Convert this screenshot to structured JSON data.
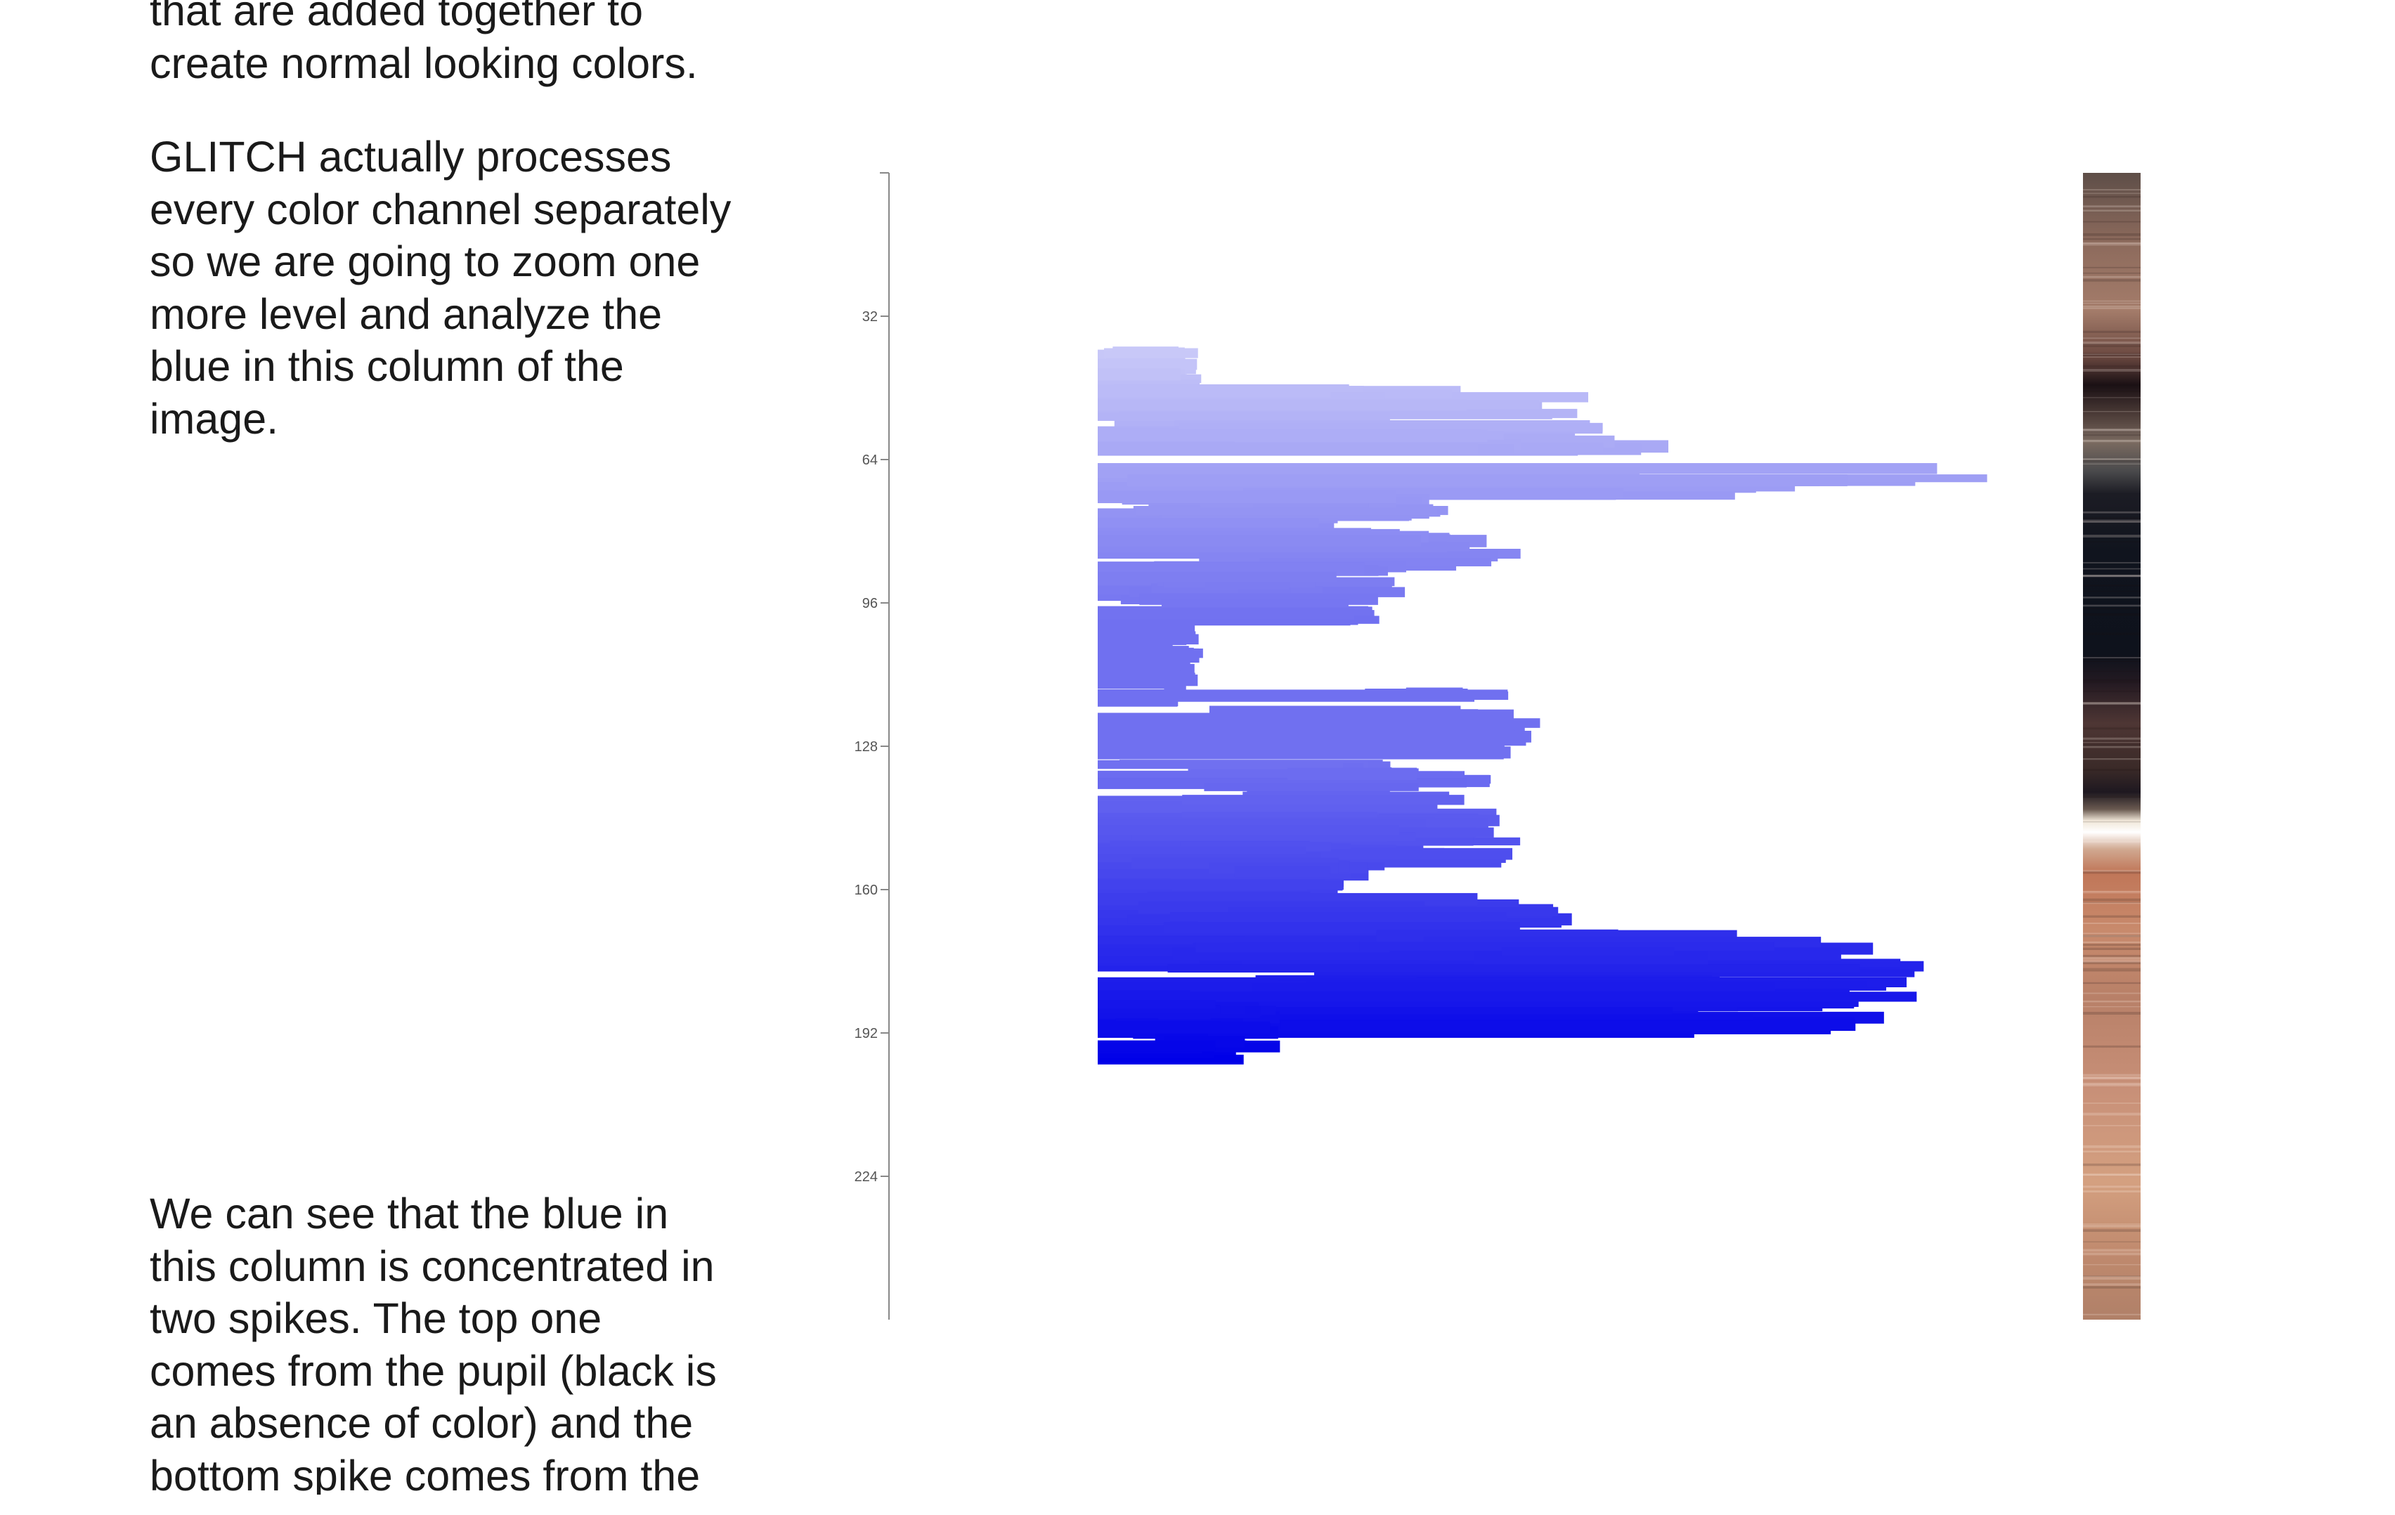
{
  "text": {
    "paragraphs": [
      "that are added together to\ncreate normal looking colors.",
      "GLITCH actually processes\nevery color channel separately\nso we are going to zoom one\nmore level and analyze the\nblue in this column of the\nimage.",
      "We can see that the blue in\nthis column is concentrated in\ntwo spikes. The top one\ncomes from the pupil (black is\nan absence of color) and the\nbottom spike comes from the"
    ]
  },
  "chart_data": {
    "type": "bar",
    "orientation": "horizontal",
    "y_axis": {
      "range": [
        0,
        256
      ],
      "ticks": [
        32,
        64,
        96,
        128,
        160,
        192,
        224
      ],
      "tick_labels": [
        "32",
        "64",
        "96",
        "128",
        "160",
        "192",
        "224"
      ]
    },
    "x_axis": {
      "range": [
        0,
        255
      ],
      "visible": false
    },
    "grid": false,
    "legend": "none",
    "colors": {
      "light": "#c8c8f8",
      "mid": "#7070f0",
      "dark": "#0000e8"
    },
    "clusters": [
      {
        "rows": [
          40,
          48
        ],
        "avg": [
          6,
          10
        ],
        "max": [
          18,
          30
        ]
      },
      {
        "rows": [
          48,
          56
        ],
        "avg": [
          6,
          20
        ],
        "max": [
          25,
          150
        ]
      },
      {
        "rows": [
          56,
          64
        ],
        "avg": [
          8,
          70
        ],
        "max": [
          80,
          160
        ]
      },
      {
        "rows": [
          64,
          72
        ],
        "avg": [
          6,
          100
        ],
        "max": [
          60,
          255
        ]
      },
      {
        "rows": [
          72,
          80
        ],
        "avg": [
          6,
          55
        ],
        "max": [
          40,
          100
        ]
      },
      {
        "rows": [
          80,
          88
        ],
        "avg": [
          25,
          65
        ],
        "max": [
          50,
          120
        ]
      },
      {
        "rows": [
          88,
          100
        ],
        "avg": [
          20,
          70
        ],
        "max": [
          35,
          90
        ]
      },
      {
        "rows": [
          101,
          118
        ],
        "avg": [
          8,
          22
        ],
        "max": [
          14,
          30
        ]
      },
      {
        "rows": [
          116,
          130
        ],
        "avg": [
          80,
          115
        ],
        "max": [
          86,
          122
        ]
      },
      {
        "rows": [
          132,
          150
        ],
        "avg": [
          30,
          90
        ],
        "max": [
          40,
          120
        ]
      },
      {
        "rows": [
          145,
          155
        ],
        "avg": [
          50,
          115
        ],
        "max": [
          55,
          122
        ]
      },
      {
        "rows": [
          150,
          165
        ],
        "avg": [
          20,
          70
        ],
        "max": [
          45,
          80
        ]
      },
      {
        "rows": [
          162,
          175
        ],
        "avg": [
          40,
          100
        ],
        "max": [
          60,
          150
        ]
      },
      {
        "rows": [
          170,
          186
        ],
        "avg": [
          50,
          160
        ],
        "max": [
          110,
          230
        ]
      },
      {
        "rows": [
          180,
          192
        ],
        "avg": [
          30,
          110
        ],
        "max": [
          120,
          236
        ]
      },
      {
        "rows": [
          185,
          198
        ],
        "avg": [
          8,
          40
        ],
        "max": [
          15,
          55
        ]
      }
    ],
    "source_column": {
      "rows": [
        0,
        255
      ],
      "stops": [
        {
          "at": 0.0,
          "color": "#5e4e48"
        },
        {
          "at": 0.06,
          "color": "#8c6a5c"
        },
        {
          "at": 0.12,
          "color": "#a47c6a"
        },
        {
          "at": 0.16,
          "color": "#6a4840"
        },
        {
          "at": 0.185,
          "color": "#1a1014"
        },
        {
          "at": 0.21,
          "color": "#4a3a36"
        },
        {
          "at": 0.235,
          "color": "#7a6a60"
        },
        {
          "at": 0.26,
          "color": "#4a4a4c"
        },
        {
          "at": 0.28,
          "color": "#1c1c24"
        },
        {
          "at": 0.33,
          "color": "#10141e"
        },
        {
          "at": 0.42,
          "color": "#0e121c"
        },
        {
          "at": 0.445,
          "color": "#241a22"
        },
        {
          "at": 0.48,
          "color": "#4e3634"
        },
        {
          "at": 0.52,
          "color": "#3a2a28"
        },
        {
          "at": 0.54,
          "color": "#1e1820"
        },
        {
          "at": 0.555,
          "color": "#6a5a50"
        },
        {
          "at": 0.565,
          "color": "#f0e6d8"
        },
        {
          "at": 0.575,
          "color": "#ffffff"
        },
        {
          "at": 0.59,
          "color": "#d0a890"
        },
        {
          "at": 0.61,
          "color": "#c07658"
        },
        {
          "at": 0.66,
          "color": "#c88a6c"
        },
        {
          "at": 0.72,
          "color": "#b88068"
        },
        {
          "at": 0.8,
          "color": "#c89078"
        },
        {
          "at": 0.88,
          "color": "#d4a080"
        },
        {
          "at": 0.94,
          "color": "#c08a6e"
        },
        {
          "at": 1.0,
          "color": "#b08068"
        }
      ]
    }
  }
}
